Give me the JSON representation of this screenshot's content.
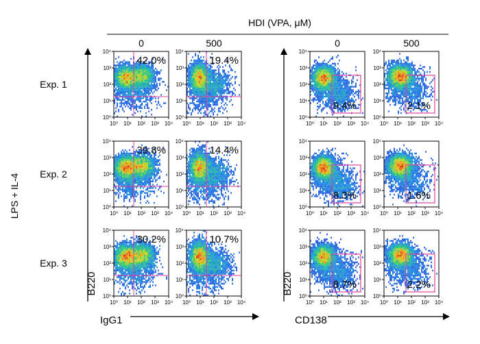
{
  "title": "HDI (VPA, μM)",
  "side_label": "LPS + IL-4",
  "left_block": {
    "x_axis": "IgG1",
    "y_axis": "B220",
    "gate": "quadrant"
  },
  "right_block": {
    "x_axis": "CD138",
    "y_axis": "B220",
    "gate": "rectangle"
  },
  "dose_labels": [
    "0",
    "500"
  ],
  "experiments": [
    "Exp. 1",
    "Exp. 2",
    "Exp. 3"
  ],
  "axis_ticks": [
    "10⁰",
    "10¹",
    "10²",
    "10³",
    "10⁴"
  ],
  "colors": {
    "gate": "#e0409a",
    "axis": "#000000"
  },
  "chart_data": {
    "type": "scatter",
    "title": "HDI (VPA, μM)",
    "doses": [
      "0",
      "500"
    ],
    "axis_range_log10": [
      0,
      4
    ],
    "panels": [
      {
        "experiment": "Exp. 1",
        "x_marker": "IgG1",
        "dose": "0",
        "percent": "42.0%"
      },
      {
        "experiment": "Exp. 1",
        "x_marker": "IgG1",
        "dose": "500",
        "percent": "19.4%"
      },
      {
        "experiment": "Exp. 1",
        "x_marker": "CD138",
        "dose": "0",
        "percent": "9.4%"
      },
      {
        "experiment": "Exp. 1",
        "x_marker": "CD138",
        "dose": "500",
        "percent": "2.1%"
      },
      {
        "experiment": "Exp. 2",
        "x_marker": "IgG1",
        "dose": "0",
        "percent": "39.8%"
      },
      {
        "experiment": "Exp. 2",
        "x_marker": "IgG1",
        "dose": "500",
        "percent": "14.4%"
      },
      {
        "experiment": "Exp. 2",
        "x_marker": "CD138",
        "dose": "0",
        "percent": "8.3%"
      },
      {
        "experiment": "Exp. 2",
        "x_marker": "CD138",
        "dose": "500",
        "percent": "1.6%"
      },
      {
        "experiment": "Exp. 3",
        "x_marker": "IgG1",
        "dose": "0",
        "percent": "30.2%"
      },
      {
        "experiment": "Exp. 3",
        "x_marker": "IgG1",
        "dose": "500",
        "percent": "10.7%"
      },
      {
        "experiment": "Exp. 3",
        "x_marker": "CD138",
        "dose": "0",
        "percent": "8.7%"
      },
      {
        "experiment": "Exp. 3",
        "x_marker": "CD138",
        "dose": "500",
        "percent": "2.2%"
      }
    ]
  }
}
